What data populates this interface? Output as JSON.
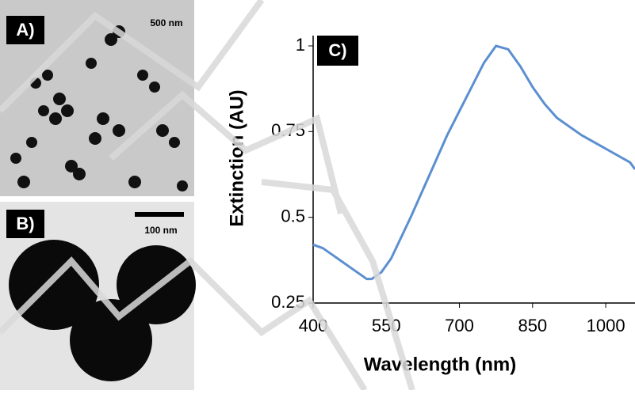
{
  "panels": [
    {
      "label": "A)",
      "scale": "500 nm"
    },
    {
      "label": "B)",
      "scale": "100 nm"
    }
  ],
  "chart_data": {
    "type": "line",
    "panel_label": "C)",
    "x_label": "Wavelength (nm)",
    "y_label": "Extinction (AU)",
    "x": [
      400,
      420,
      440,
      460,
      480,
      500,
      510,
      520,
      540,
      560,
      580,
      600,
      625,
      650,
      675,
      700,
      725,
      750,
      775,
      800,
      825,
      850,
      875,
      900,
      950,
      1000,
      1050,
      1060
    ],
    "series": [
      {
        "color": "#5b8fd0",
        "values": [
          0.42,
          0.41,
          0.39,
          0.37,
          0.35,
          0.33,
          0.32,
          0.32,
          0.34,
          0.38,
          0.44,
          0.5,
          0.58,
          0.66,
          0.74,
          0.81,
          0.88,
          0.95,
          1.0,
          0.99,
          0.94,
          0.88,
          0.83,
          0.79,
          0.74,
          0.7,
          0.66,
          0.64
        ]
      }
    ],
    "xlim": [
      400,
      1060
    ],
    "ylim": [
      0.25,
      1.03
    ],
    "xticks": [
      400,
      550,
      700,
      850,
      1000
    ],
    "yticks": [
      0.25,
      0.5,
      0.75,
      1
    ]
  }
}
